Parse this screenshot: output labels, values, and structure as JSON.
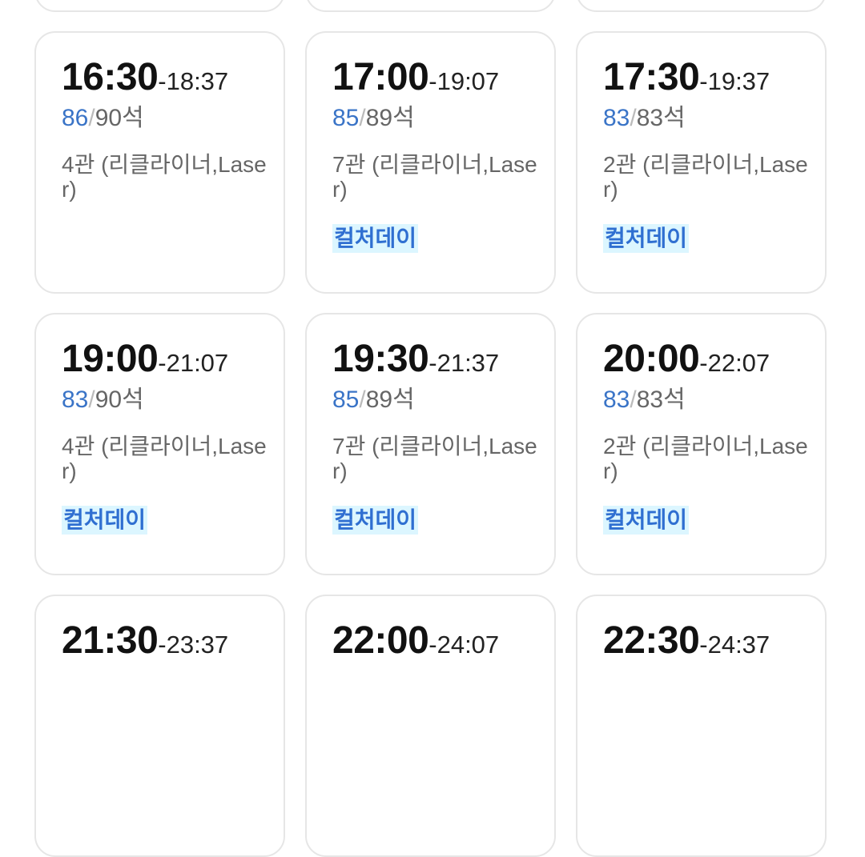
{
  "seat_suffix": "석",
  "colors": {
    "available": "#3a74c7",
    "badge_bg": "#dcf6ff",
    "badge_text": "#2f6fd1"
  },
  "showtimes": [
    {
      "start": "",
      "end": "",
      "available": "",
      "total": "",
      "hall": "",
      "badge": ""
    },
    {
      "start": "",
      "end": "",
      "available": "",
      "total": "",
      "hall": "",
      "badge": ""
    },
    {
      "start": "",
      "end": "",
      "available": "",
      "total": "",
      "hall": "",
      "badge": ""
    },
    {
      "start": "16:30",
      "end": "-18:37",
      "available": "86",
      "total": "90석",
      "hall": "4관 (리클라이너,Laser)",
      "badge": ""
    },
    {
      "start": "17:00",
      "end": "-19:07",
      "available": "85",
      "total": "89석",
      "hall": "7관 (리클라이너,Laser)",
      "badge": "컬처데이"
    },
    {
      "start": "17:30",
      "end": "-19:37",
      "available": "83",
      "total": "83석",
      "hall": "2관 (리클라이너,Laser)",
      "badge": "컬처데이"
    },
    {
      "start": "19:00",
      "end": "-21:07",
      "available": "83",
      "total": "90석",
      "hall": "4관 (리클라이너,Laser)",
      "badge": "컬처데이"
    },
    {
      "start": "19:30",
      "end": "-21:37",
      "available": "85",
      "total": "89석",
      "hall": "7관 (리클라이너,Laser)",
      "badge": "컬처데이"
    },
    {
      "start": "20:00",
      "end": "-22:07",
      "available": "83",
      "total": "83석",
      "hall": "2관 (리클라이너,Laser)",
      "badge": "컬처데이"
    },
    {
      "start": "21:30",
      "end": "-23:37",
      "available": "",
      "total": "",
      "hall": "",
      "badge": ""
    },
    {
      "start": "22:00",
      "end": "-24:07",
      "available": "",
      "total": "",
      "hall": "",
      "badge": ""
    },
    {
      "start": "22:30",
      "end": "-24:37",
      "available": "",
      "total": "",
      "hall": "",
      "badge": ""
    }
  ]
}
